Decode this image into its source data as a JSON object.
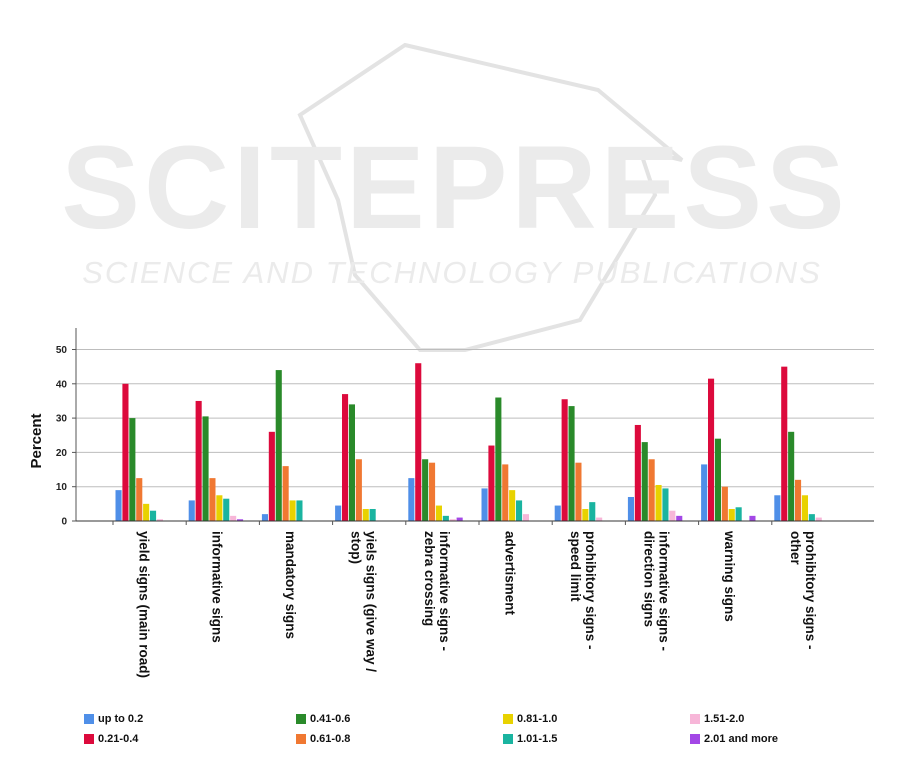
{
  "watermark": {
    "title": "SCITEPRESS",
    "subtitle": "SCIENCE AND TECHNOLOGY PUBLICATIONS"
  },
  "chart_data": {
    "type": "bar",
    "title": "",
    "xlabel": "",
    "ylabel": "Percent",
    "ylim": [
      0,
      55
    ],
    "yticks": [
      0,
      10,
      20,
      30,
      40,
      50
    ],
    "grid": "horizontal",
    "legend_position": "bottom",
    "categories": [
      [
        "yield signs (main road)"
      ],
      [
        "informative signs"
      ],
      [
        "mandatory signs"
      ],
      [
        "yiels signs (give way /",
        "stop)"
      ],
      [
        "informative signs -",
        "zebra crossing"
      ],
      [
        "advertisment"
      ],
      [
        "prohibitory signs -",
        "speed limit"
      ],
      [
        "informative signs -",
        "direction signs"
      ],
      [
        "warning signs"
      ],
      [
        "prohibitory signs -",
        "other"
      ]
    ],
    "series": [
      {
        "name": "up to 0.2",
        "color": "#4f8fe8",
        "values": [
          9,
          6,
          2,
          4.5,
          12.5,
          9.5,
          4.5,
          7,
          16.5,
          7.5
        ]
      },
      {
        "name": "0.21-0.4",
        "color": "#dc0a3c",
        "values": [
          40,
          35,
          26,
          37,
          46,
          22,
          35.5,
          28,
          41.5,
          45
        ]
      },
      {
        "name": "0.41-0.6",
        "color": "#2a8a2a",
        "values": [
          30,
          30.5,
          44,
          34,
          18,
          36,
          33.5,
          23,
          24,
          26
        ]
      },
      {
        "name": "0.61-0.8",
        "color": "#f07832",
        "values": [
          12.5,
          12.5,
          16,
          18,
          17,
          16.5,
          17,
          18,
          10,
          12
        ]
      },
      {
        "name": "0.81-1.0",
        "color": "#e8d200",
        "values": [
          5,
          7.5,
          6,
          3.5,
          4.5,
          9,
          3.5,
          10.5,
          3.5,
          7.5
        ]
      },
      {
        "name": "1.01-1.5",
        "color": "#1ab4a0",
        "values": [
          3,
          6.5,
          6,
          3.5,
          1.5,
          6,
          5.5,
          9.5,
          4,
          2
        ]
      },
      {
        "name": "1.51-2.0",
        "color": "#f7b6d8",
        "values": [
          0.5,
          1.5,
          0,
          0,
          0.5,
          2,
          1,
          3,
          0,
          1
        ]
      },
      {
        "name": "2.01 and more",
        "color": "#a347e6",
        "values": [
          0,
          0.5,
          0,
          0,
          1,
          0,
          0,
          1.5,
          1.5,
          0
        ]
      }
    ]
  }
}
